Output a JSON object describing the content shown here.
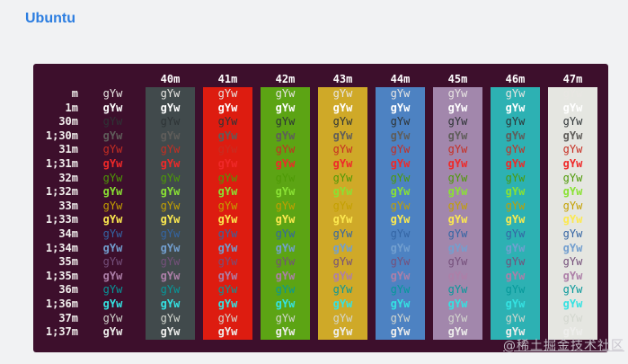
{
  "page": {
    "title": "Ubuntu",
    "watermark": "@稀土掘金技术社区"
  },
  "colors": {
    "page_bg": "#f1f2f3",
    "title": "#2b7de0",
    "terminal_bg": "#3d0f2c",
    "header_fg": "#ffffff",
    "row_label_fg": "#f2f0ee"
  },
  "terminal": {
    "cell_text": "gYw",
    "bg_columns": [
      {
        "label": "40m",
        "color": "#414a4c"
      },
      {
        "label": "41m",
        "color": "#dd1c10"
      },
      {
        "label": "42m",
        "color": "#5ca414"
      },
      {
        "label": "43m",
        "color": "#cfa928"
      },
      {
        "label": "44m",
        "color": "#4d82c2"
      },
      {
        "label": "45m",
        "color": "#a287ac"
      },
      {
        "label": "46m",
        "color": "#2db1b3"
      },
      {
        "label": "47m",
        "color": "#e5e6e1"
      }
    ],
    "rows": [
      {
        "label": "m",
        "fg": "#e8e6e3",
        "bold": false
      },
      {
        "label": "1m",
        "fg": "#ffffff",
        "bold": true
      },
      {
        "label": "30m",
        "fg": "#2e3436",
        "bold": false
      },
      {
        "label": "1;30m",
        "fg": "#5f5d5a",
        "bold": true
      },
      {
        "label": "31m",
        "fg": "#c72e22",
        "bold": false
      },
      {
        "label": "1;31m",
        "fg": "#ef2929",
        "bold": true
      },
      {
        "label": "32m",
        "fg": "#4e9a06",
        "bold": false
      },
      {
        "label": "1;32m",
        "fg": "#8ae234",
        "bold": true
      },
      {
        "label": "33m",
        "fg": "#c4a000",
        "bold": false
      },
      {
        "label": "1;33m",
        "fg": "#fce94f",
        "bold": true
      },
      {
        "label": "34m",
        "fg": "#3465a4",
        "bold": false
      },
      {
        "label": "1;34m",
        "fg": "#729fcf",
        "bold": true
      },
      {
        "label": "35m",
        "fg": "#75507b",
        "bold": false
      },
      {
        "label": "1;35m",
        "fg": "#ad7fa8",
        "bold": true
      },
      {
        "label": "36m",
        "fg": "#06989a",
        "bold": false
      },
      {
        "label": "1;36m",
        "fg": "#34e2e2",
        "bold": true
      },
      {
        "label": "37m",
        "fg": "#d3d7cf",
        "bold": false
      },
      {
        "label": "1;37m",
        "fg": "#eeeeec",
        "bold": true
      }
    ]
  }
}
